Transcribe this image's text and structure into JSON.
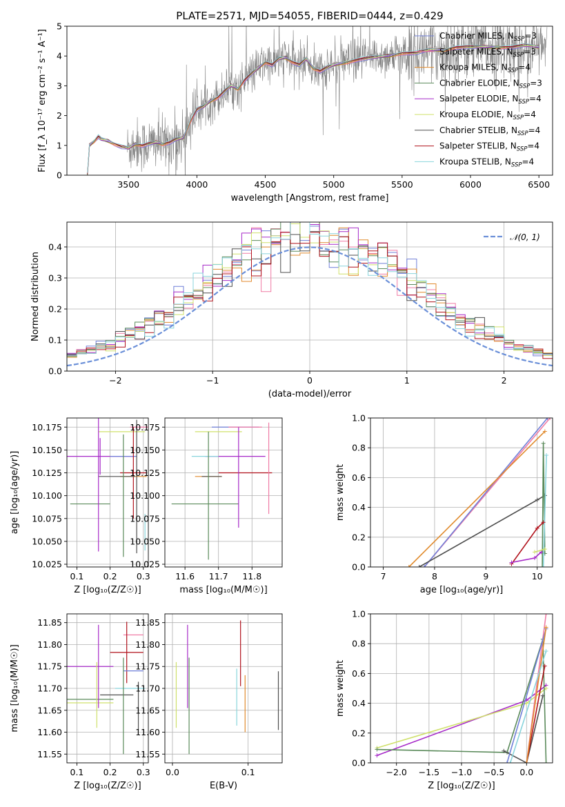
{
  "title": "PLATE=2571, MJD=54055, FIBERID=0444, z=0.429",
  "colors": {
    "Chabrier MILES": "#6f7fd8",
    "Salpeter MILES": "#f07aa4",
    "Kroupa MILES": "#e08a2c",
    "Chabrier ELODIE": "#5a8a5a",
    "Salpeter ELODIE": "#a628c8",
    "Kroupa ELODIE": "#cfe06a",
    "Chabrier STELIB": "#4d4d4d",
    "Salpeter STELIB": "#b0101a",
    "Kroupa STELIB": "#88d4dc",
    "data": "#808080",
    "gaussian": "#6a8fd8"
  },
  "chart_data": [
    {
      "id": "spectrum",
      "type": "line",
      "title": "PLATE=2571, MJD=54055, FIBERID=0444, z=0.429",
      "xlabel": "wavelength [Angstrom, rest frame]",
      "ylabel": "Flux [f_λ 10⁻¹⁷ erg cm⁻² s⁻¹ A⁻¹]",
      "xlim": [
        3050,
        6600
      ],
      "ylim": [
        0,
        5
      ],
      "xticks": [
        3500,
        4000,
        4500,
        5000,
        5500,
        6000,
        6500
      ],
      "yticks": [
        0,
        1,
        2,
        3,
        4,
        5
      ],
      "grid": false,
      "legend_position": "upper right",
      "legend": [
        {
          "base": "Chabrier MILES, N",
          "sub": "SSP",
          "tail": "=3",
          "color": "#6f7fd8"
        },
        {
          "base": "Salpeter MILES, N",
          "sub": "SSP",
          "tail": "=3",
          "color": "#f07aa4"
        },
        {
          "base": "Kroupa MILES, N",
          "sub": "SSP",
          "tail": "=4",
          "color": "#e08a2c"
        },
        {
          "base": "Chabrier ELODIE, N",
          "sub": "SSP",
          "tail": "=3",
          "color": "#5a8a5a"
        },
        {
          "base": "Salpeter ELODIE, N",
          "sub": "SSP",
          "tail": "=4",
          "color": "#a628c8"
        },
        {
          "base": "Kroupa ELODIE, N",
          "sub": "SSP",
          "tail": "=4",
          "color": "#cfe06a"
        },
        {
          "base": "Chabrier STELIB, N",
          "sub": "SSP",
          "tail": "=4",
          "color": "#4d4d4d"
        },
        {
          "base": "Salpeter STELIB, N",
          "sub": "SSP",
          "tail": "=4",
          "color": "#b0101a"
        },
        {
          "base": "Kroupa STELIB, N",
          "sub": "SSP",
          "tail": "=4",
          "color": "#88d4dc"
        }
      ],
      "model_continuum": {
        "x": [
          3200,
          3215,
          3250,
          3280,
          3300,
          3350,
          3400,
          3450,
          3500,
          3550,
          3600,
          3650,
          3700,
          3750,
          3800,
          3850,
          3900,
          3950,
          4000,
          4050,
          4100,
          4150,
          4200,
          4250,
          4300,
          4350,
          4400,
          4450,
          4500,
          4550,
          4600,
          4650,
          4700,
          4750,
          4800,
          4850,
          4900,
          4950,
          5000,
          5100,
          5200,
          5300,
          5400,
          5500,
          5600,
          5700,
          5800,
          5900,
          6000,
          6100,
          6200,
          6300,
          6400,
          6500
        ],
        "y": [
          0.0,
          1.0,
          1.15,
          1.3,
          1.2,
          1.15,
          1.05,
          0.95,
          0.9,
          1.05,
          1.0,
          1.05,
          1.1,
          1.05,
          1.1,
          1.2,
          1.25,
          1.8,
          2.2,
          2.3,
          2.5,
          2.6,
          2.8,
          3.0,
          2.9,
          3.2,
          3.4,
          3.6,
          3.8,
          3.7,
          3.9,
          3.95,
          3.8,
          3.7,
          3.9,
          3.6,
          3.5,
          3.6,
          3.7,
          3.8,
          3.9,
          3.95,
          4.0,
          4.1,
          4.1,
          4.2,
          4.2,
          4.3,
          4.3,
          4.3,
          4.3,
          4.3,
          4.35,
          4.3
        ]
      },
      "observed_range": [
        3490,
        6560
      ]
    },
    {
      "id": "residuals",
      "type": "histogram",
      "xlabel": "(data-model)/error",
      "ylabel": "Normed distribution",
      "xlim": [
        -2.5,
        2.5
      ],
      "ylim": [
        0,
        0.48
      ],
      "xticks": [
        -2,
        -1,
        0,
        1,
        2
      ],
      "yticks": [
        0.0,
        0.1,
        0.2,
        0.3,
        0.4
      ],
      "grid": true,
      "legend_position": "upper right",
      "legend_label": "𝒩(0, 1)",
      "bin_width": 0.1,
      "reference_curve": "standard normal density"
    },
    {
      "id": "age-vs-Z",
      "type": "errorbar",
      "xlabel": "Z [log₁₀(Z/Z☉)]",
      "ylabel": "age [log₁₀(age/yr)]",
      "xlim": [
        0.07,
        0.315
      ],
      "ylim": [
        10.022,
        10.185
      ],
      "xticks": [
        0.1,
        0.2,
        0.3
      ],
      "yticks": [
        10.025,
        10.05,
        10.075,
        10.1,
        10.125,
        10.15,
        10.175
      ],
      "grid": true,
      "points": [
        {
          "x": 0.29,
          "y": 10.175,
          "xerr": 0.03,
          "yerr": 0.0,
          "color": "#f07aa4"
        },
        {
          "x": 0.235,
          "y": 10.17,
          "xerr": 0.07,
          "yerr": 0.0,
          "color": "#cfe06a"
        },
        {
          "x": 0.17,
          "y": 10.143,
          "xerr": 0.1,
          "yerr": 0.02,
          "color": "#a628c8"
        },
        {
          "x": 0.24,
          "y": 10.143,
          "xerr": 0.04,
          "yerr": 0.0,
          "color": "#6f7fd8"
        },
        {
          "x": 0.27,
          "y": 10.125,
          "xerr": 0.04,
          "yerr": 0.05,
          "color": "#b0101a"
        },
        {
          "x": 0.27,
          "y": 10.121,
          "xerr": 0.04,
          "yerr": 0.0,
          "color": "#e08a2c"
        },
        {
          "x": 0.22,
          "y": 10.121,
          "xerr": 0.055,
          "yerr": 0.0,
          "color": "#4d4d4d"
        },
        {
          "x": 0.14,
          "y": 10.091,
          "xerr": 0.06,
          "yerr": 0.0,
          "color": "#5a8a5a"
        },
        {
          "x": 0.165,
          "y": 10.143,
          "xerr": 0.0,
          "yerr": 0.104,
          "color": "#a628c8"
        },
        {
          "x": 0.24,
          "y": 10.1,
          "xerr": 0.0,
          "yerr": 0.067,
          "color": "#5a8a5a"
        },
        {
          "x": 0.28,
          "y": 10.11,
          "xerr": 0.0,
          "yerr": 0.073,
          "color": "#4d4d4d"
        },
        {
          "x": 0.305,
          "y": 10.06,
          "xerr": 0.0,
          "yerr": 0.02,
          "color": "#88d4dc"
        }
      ]
    },
    {
      "id": "age-vs-mass",
      "type": "errorbar",
      "xlabel": "mass [log₁₀(M/M☉)]",
      "ylabel": "",
      "xlim": [
        11.54,
        11.89
      ],
      "ylim": [
        10.022,
        10.185
      ],
      "xticks": [
        11.6,
        11.7,
        11.8
      ],
      "yticks": [
        10.025,
        10.05,
        10.075,
        10.1,
        10.125,
        10.15,
        10.175
      ],
      "grid": true,
      "points": [
        {
          "x": 11.75,
          "y": 10.175,
          "xerr": 0.07,
          "yerr": 0.0,
          "color": "#6f7fd8"
        },
        {
          "x": 11.78,
          "y": 10.175,
          "xerr": 0.05,
          "yerr": 0.0,
          "color": "#f07aa4"
        },
        {
          "x": 11.7,
          "y": 10.17,
          "xerr": 0.07,
          "yerr": 0.0,
          "color": "#cfe06a"
        },
        {
          "x": 11.75,
          "y": 10.143,
          "xerr": 0.09,
          "yerr": 0.0,
          "color": "#a628c8"
        },
        {
          "x": 11.66,
          "y": 10.143,
          "xerr": 0.04,
          "yerr": 0.0,
          "color": "#88d4dc"
        },
        {
          "x": 11.78,
          "y": 10.125,
          "xerr": 0.08,
          "yerr": 0.0,
          "color": "#b0101a"
        },
        {
          "x": 11.67,
          "y": 10.121,
          "xerr": 0.04,
          "yerr": 0.0,
          "color": "#e08a2c"
        },
        {
          "x": 11.68,
          "y": 10.121,
          "xerr": 0.03,
          "yerr": 0.0,
          "color": "#4d4d4d"
        },
        {
          "x": 11.66,
          "y": 10.091,
          "xerr": 0.1,
          "yerr": 0.0,
          "color": "#5a8a5a"
        },
        {
          "x": 11.67,
          "y": 10.1,
          "xerr": 0.0,
          "yerr": 0.07,
          "color": "#5a8a5a"
        },
        {
          "x": 11.76,
          "y": 10.12,
          "xerr": 0.0,
          "yerr": 0.055,
          "color": "#a628c8"
        },
        {
          "x": 11.85,
          "y": 10.13,
          "xerr": 0.0,
          "yerr": 0.05,
          "color": "#f07aa4"
        }
      ]
    },
    {
      "id": "massweight-vs-age",
      "type": "line",
      "xlabel": "age  [log₁₀(age/yr)]",
      "ylabel": "mass weight",
      "xlim": [
        6.75,
        10.3
      ],
      "ylim": [
        0,
        1
      ],
      "xticks": [
        7,
        8,
        9,
        10
      ],
      "yticks": [
        0.0,
        0.2,
        0.4,
        0.6,
        0.8,
        1.0
      ],
      "grid": true,
      "series": [
        {
          "color": "#f07aa4",
          "x": [
            7.8,
            10.25
          ],
          "y": [
            0.0,
            1.0
          ]
        },
        {
          "color": "#6f7fd8",
          "x": [
            7.8,
            10.2
          ],
          "y": [
            0.0,
            1.0
          ]
        },
        {
          "color": "#e08a2c",
          "x": [
            7.5,
            10.15
          ],
          "y": [
            0.0,
            0.91
          ]
        },
        {
          "color": "#4d4d4d",
          "x": [
            7.7,
            10.0,
            10.15
          ],
          "y": [
            0.0,
            0.45,
            0.48
          ]
        },
        {
          "color": "#5a8a5a",
          "x": [
            10.1,
            10.12,
            10.15
          ],
          "y": [
            0.0,
            0.83,
            0.09
          ]
        },
        {
          "color": "#88d4dc",
          "x": [
            10.12,
            10.18
          ],
          "y": [
            0.0,
            0.75
          ]
        },
        {
          "color": "#b0101a",
          "x": [
            9.5,
            10.0,
            10.12
          ],
          "y": [
            0.02,
            0.26,
            0.3
          ]
        },
        {
          "color": "#a628c8",
          "x": [
            9.5,
            9.95,
            10.08
          ],
          "y": [
            0.03,
            0.06,
            0.1
          ]
        },
        {
          "color": "#cfe06a",
          "x": [
            9.95,
            10.15
          ],
          "y": [
            0.1,
            0.12
          ]
        }
      ]
    },
    {
      "id": "mass-vs-Z",
      "type": "errorbar",
      "xlabel": "Z [log₁₀(Z/Z☉)]",
      "ylabel": "mass [log₁₀(M/M☉)]",
      "xlim": [
        0.07,
        0.315
      ],
      "ylim": [
        11.53,
        11.87
      ],
      "xticks": [
        0.1,
        0.2,
        0.3
      ],
      "yticks": [
        11.55,
        11.6,
        11.65,
        11.7,
        11.75,
        11.8,
        11.85
      ],
      "grid": true,
      "points": [
        {
          "x": 0.27,
          "y": 11.822,
          "xerr": 0.03,
          "yerr": 0.0,
          "color": "#f07aa4"
        },
        {
          "x": 0.25,
          "y": 11.782,
          "xerr": 0.05,
          "yerr": 0.07,
          "color": "#b0101a"
        },
        {
          "x": 0.14,
          "y": 11.75,
          "xerr": 0.07,
          "yerr": 0.0,
          "color": "#a628c8"
        },
        {
          "x": 0.27,
          "y": 11.74,
          "xerr": 0.03,
          "yerr": 0.0,
          "color": "#6f7fd8"
        },
        {
          "x": 0.26,
          "y": 11.7,
          "xerr": 0.045,
          "yerr": 0.0,
          "color": "#88d4dc"
        },
        {
          "x": 0.22,
          "y": 11.685,
          "xerr": 0.05,
          "yerr": 0.0,
          "color": "#4d4d4d"
        },
        {
          "x": 0.14,
          "y": 11.675,
          "xerr": 0.07,
          "yerr": 0.0,
          "color": "#5a8a5a"
        },
        {
          "x": 0.14,
          "y": 11.667,
          "xerr": 0.07,
          "yerr": 0.0,
          "color": "#cfe06a"
        },
        {
          "x": 0.165,
          "y": 11.75,
          "xerr": 0.0,
          "yerr": 0.095,
          "color": "#a628c8"
        },
        {
          "x": 0.24,
          "y": 11.66,
          "xerr": 0.0,
          "yerr": 0.11,
          "color": "#5a8a5a"
        },
        {
          "x": 0.285,
          "y": 11.66,
          "xerr": 0.0,
          "yerr": 0.055,
          "color": "#4d4d4d"
        },
        {
          "x": 0.16,
          "y": 11.685,
          "xerr": 0.0,
          "yerr": 0.075,
          "color": "#cfe06a"
        }
      ]
    },
    {
      "id": "mass-vs-ebv",
      "type": "errorbar",
      "xlabel": "E(B-V)",
      "ylabel": "",
      "xlim": [
        -0.01,
        0.145
      ],
      "ylim": [
        11.53,
        11.87
      ],
      "xticks": [
        0.0,
        0.1
      ],
      "yticks": [
        11.55,
        11.6,
        11.65,
        11.7,
        11.75,
        11.8,
        11.85
      ],
      "grid": true,
      "points": [
        {
          "x": 0.005,
          "y": 11.685,
          "xerr": 0.0,
          "yerr": 0.075,
          "color": "#cfe06a"
        },
        {
          "x": 0.02,
          "y": 11.75,
          "xerr": 0.0,
          "yerr": 0.095,
          "color": "#a628c8"
        },
        {
          "x": 0.022,
          "y": 11.66,
          "xerr": 0.0,
          "yerr": 0.11,
          "color": "#5a8a5a"
        },
        {
          "x": 0.085,
          "y": 11.68,
          "xerr": 0.0,
          "yerr": 0.065,
          "color": "#88d4dc"
        },
        {
          "x": 0.09,
          "y": 11.78,
          "xerr": 0.0,
          "yerr": 0.075,
          "color": "#b0101a"
        },
        {
          "x": 0.096,
          "y": 11.665,
          "xerr": 0.0,
          "yerr": 0.065,
          "color": "#e08a2c"
        },
        {
          "x": 0.14,
          "y": 11.672,
          "xerr": 0.0,
          "yerr": 0.067,
          "color": "#4d4d4d"
        }
      ]
    },
    {
      "id": "massweight-vs-Z",
      "type": "line",
      "xlabel": "Z [log₁₀(Z/Z☉)]",
      "ylabel": "mass weight",
      "xlim": [
        -2.4,
        0.4
      ],
      "ylim": [
        0,
        1
      ],
      "xticks": [
        -2.0,
        -1.5,
        -1.0,
        -0.5,
        0.0
      ],
      "yticks": [
        0.0,
        0.2,
        0.4,
        0.6,
        0.8,
        1.0
      ],
      "grid": true,
      "series": [
        {
          "color": "#a628c8",
          "x": [
            -2.3,
            0.0,
            0.3
          ],
          "y": [
            0.05,
            0.42,
            0.52
          ]
        },
        {
          "color": "#cfe06a",
          "x": [
            -2.3,
            0.0,
            0.3
          ],
          "y": [
            0.1,
            0.4,
            0.5
          ]
        },
        {
          "color": "#5a8a5a",
          "x": [
            -2.3,
            -0.3,
            0.25,
            0.3
          ],
          "y": [
            0.09,
            0.07,
            0.83,
            0.0
          ]
        },
        {
          "color": "#4d4d4d",
          "x": [
            -0.35,
            0.0,
            0.25
          ],
          "y": [
            0.08,
            0.0,
            0.45
          ]
        },
        {
          "color": "#b0101a",
          "x": [
            0.0,
            0.28
          ],
          "y": [
            0.0,
            0.65
          ]
        },
        {
          "color": "#f07aa4",
          "x": [
            0.0,
            0.3
          ],
          "y": [
            0.0,
            1.0
          ]
        },
        {
          "color": "#6f7fd8",
          "x": [
            -0.3,
            0.3
          ],
          "y": [
            0.0,
            0.9
          ]
        },
        {
          "color": "#e08a2c",
          "x": [
            0.0,
            0.3
          ],
          "y": [
            0.0,
            0.91
          ]
        },
        {
          "color": "#88d4dc",
          "x": [
            -0.25,
            0.3
          ],
          "y": [
            0.0,
            0.75
          ]
        }
      ]
    }
  ]
}
